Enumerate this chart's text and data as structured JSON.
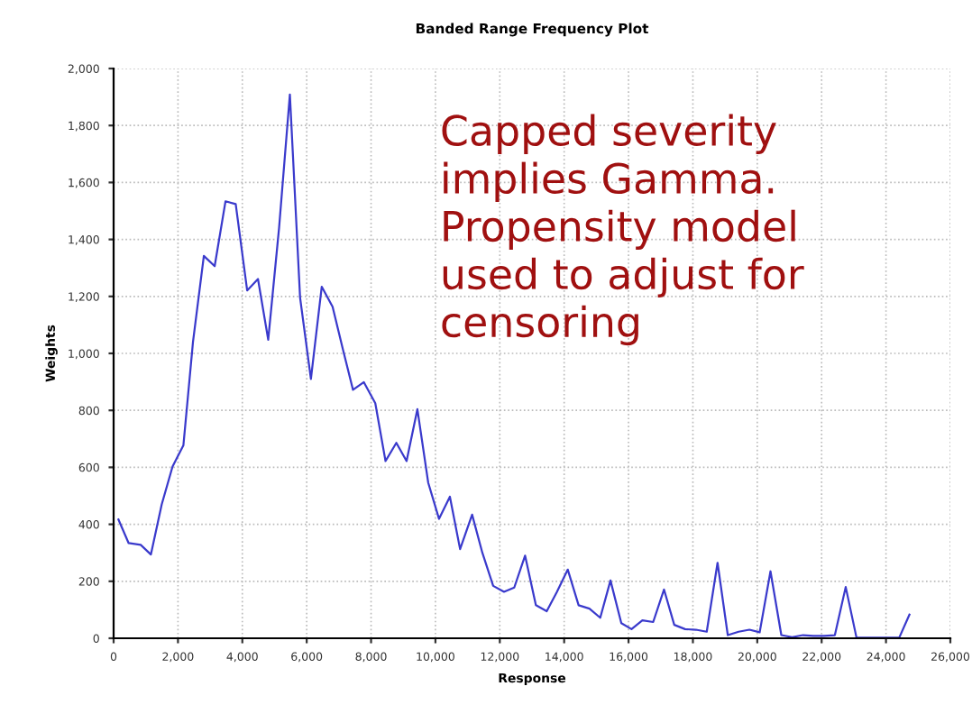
{
  "chart_data": {
    "type": "line",
    "title": "Banded Range Frequency Plot",
    "xlabel": "Response",
    "ylabel": "Weights",
    "x": [
      150,
      467,
      841,
      1159,
      1495,
      1832,
      2168,
      2467,
      2804,
      3140,
      3477,
      3794,
      4150,
      4486,
      4804,
      5140,
      5477,
      5794,
      6131,
      6467,
      6804,
      7121,
      7439,
      7776,
      8131,
      8449,
      8785,
      9103,
      9439,
      9776,
      10112,
      10449,
      10766,
      11140,
      11458,
      11794,
      12131,
      12449,
      12785,
      13121,
      13458,
      13776,
      14112,
      14449,
      14785,
      15121,
      15439,
      15776,
      16093,
      16430,
      16766,
      17103,
      17421,
      17757,
      18093,
      18430,
      18766,
      19084,
      19421,
      19757,
      20075,
      20411,
      20748,
      21084,
      21421,
      21738,
      22075,
      22411,
      22748,
      23084,
      23402,
      23738,
      24075,
      24411,
      24729
    ],
    "series": [
      {
        "color": "#3a3acc",
        "values": [
          417,
          334,
          328,
          294,
          470,
          603,
          677,
          1041,
          1342,
          1306,
          1534,
          1524,
          1221,
          1261,
          1048,
          1439,
          1909,
          1196,
          910,
          1234,
          1164,
          1016,
          872,
          899,
          825,
          622,
          686,
          622,
          804,
          546,
          419,
          497,
          313,
          434,
          300,
          184,
          163,
          178,
          290,
          116,
          95,
          163,
          241,
          116,
          104,
          72,
          203,
          53,
          32,
          63,
          57,
          171,
          47,
          32,
          30,
          23,
          265,
          11,
          23,
          30,
          21,
          235,
          11,
          4,
          11,
          8,
          8,
          11,
          180,
          2,
          2,
          2,
          2,
          2,
          83
        ]
      }
    ],
    "xlim": [
      0,
      26000
    ],
    "xticks": [
      {
        "value": 0,
        "label": "0"
      },
      {
        "value": 2000,
        "label": "2,000"
      },
      {
        "value": 4000,
        "label": "4,000"
      },
      {
        "value": 6000,
        "label": "6,000"
      },
      {
        "value": 8000,
        "label": "8,000"
      },
      {
        "value": 10000,
        "label": "10,000"
      },
      {
        "value": 12000,
        "label": "12,000"
      },
      {
        "value": 14000,
        "label": "14,000"
      },
      {
        "value": 16000,
        "label": "16,000"
      },
      {
        "value": 18000,
        "label": "18,000"
      },
      {
        "value": 20000,
        "label": "20,000"
      },
      {
        "value": 22000,
        "label": "22,000"
      },
      {
        "value": 24000,
        "label": "24,000"
      },
      {
        "value": 26000,
        "label": "26,000"
      }
    ],
    "ylim": [
      0,
      2000
    ],
    "yticks": [
      0,
      200,
      400,
      600,
      800,
      {
        "value": 1000,
        "label": "1,000"
      },
      {
        "value": 1200,
        "label": "1,200"
      },
      {
        "value": 1400,
        "label": "1,400"
      },
      {
        "value": 1600,
        "label": "1,600"
      },
      {
        "value": 1800,
        "label": "1,800"
      },
      {
        "value": 2000,
        "label": "2,000"
      }
    ],
    "grid": true,
    "line_style": "solid",
    "marker": "none",
    "annotations": [
      "Capped severity\nimplies Gamma.\nPropensity model\nused to adjust for\ncensoring"
    ]
  }
}
